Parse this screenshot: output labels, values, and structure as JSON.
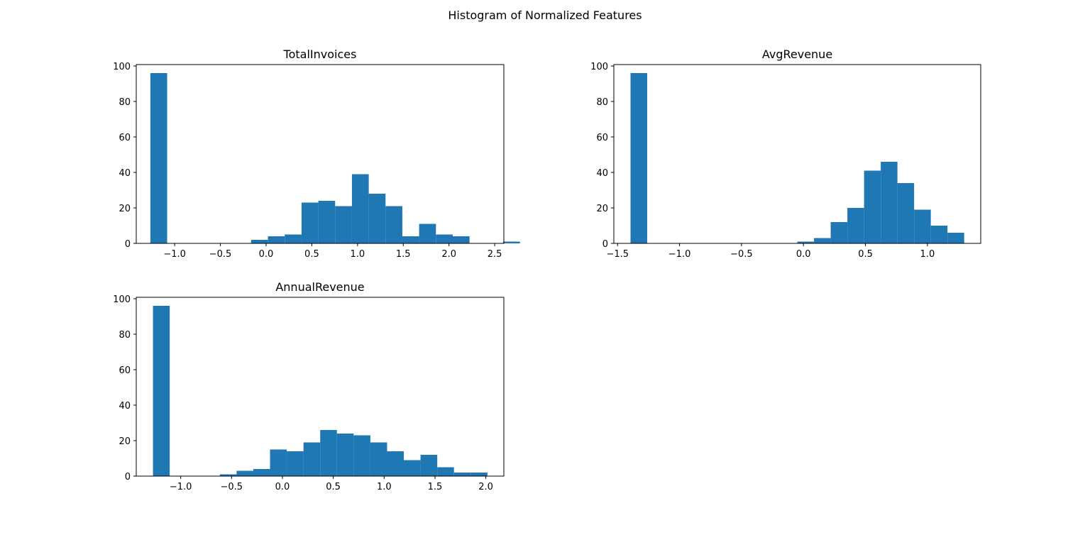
{
  "figure": {
    "title": "Histogram of Normalized Features"
  },
  "chart_data": [
    {
      "type": "bar",
      "title": "TotalInvoices",
      "xlabel": "",
      "ylabel": "",
      "grid": false,
      "xlim": [
        -1.42,
        2.6
      ],
      "ylim": [
        0,
        100.8
      ],
      "xticks": [
        -1.0,
        -0.5,
        0.0,
        0.5,
        1.0,
        1.5,
        2.0,
        2.5
      ],
      "xtick_labels": [
        "−1.0",
        "−0.5",
        "0.0",
        "0.5",
        "1.0",
        "1.5",
        "2.0",
        "2.5"
      ],
      "yticks": [
        0,
        20,
        40,
        60,
        80,
        100
      ],
      "ytick_labels": [
        "0",
        "20",
        "40",
        "60",
        "80",
        "100"
      ],
      "color": "#1f77b4",
      "bin_start": -1.2656,
      "bin_width": 0.1837,
      "values": [
        96,
        0,
        0,
        0,
        0,
        0,
        2,
        4,
        5,
        23,
        24,
        21,
        39,
        28,
        21,
        4,
        11,
        5,
        4,
        0,
        0,
        1
      ]
    },
    {
      "type": "bar",
      "title": "AvgRevenue",
      "xlabel": "",
      "ylabel": "",
      "grid": false,
      "xlim": [
        -1.53,
        1.43
      ],
      "ylim": [
        0,
        100.8
      ],
      "xticks": [
        -1.5,
        -1.0,
        -0.5,
        0.0,
        0.5,
        1.0
      ],
      "xtick_labels": [
        "−1.5",
        "−1.0",
        "−0.5",
        "0.0",
        "0.5",
        "1.0"
      ],
      "yticks": [
        0,
        20,
        40,
        60,
        80,
        100
      ],
      "ytick_labels": [
        "0",
        "20",
        "40",
        "60",
        "80",
        "100"
      ],
      "color": "#1f77b4",
      "bin_start": -1.3955,
      "bin_width": 0.1346,
      "values": [
        96,
        0,
        0,
        0,
        0,
        0,
        0,
        0,
        0,
        0,
        1,
        3,
        12,
        20,
        41,
        46,
        34,
        19,
        10,
        6
      ]
    },
    {
      "type": "bar",
      "title": "AnnualRevenue",
      "xlabel": "",
      "ylabel": "",
      "grid": false,
      "xlim": [
        -1.437,
        2.177
      ],
      "ylim": [
        0,
        100.8
      ],
      "xticks": [
        -1.0,
        -0.5,
        0.0,
        0.5,
        1.0,
        1.5,
        2.0
      ],
      "xtick_labels": [
        "−1.0",
        "−0.5",
        "0.0",
        "0.5",
        "1.0",
        "1.5",
        "2.0"
      ],
      "yticks": [
        0,
        20,
        40,
        60,
        80,
        100
      ],
      "ytick_labels": [
        "0",
        "20",
        "40",
        "60",
        "80",
        "100"
      ],
      "color": "#1f77b4",
      "bin_start": -1.2725,
      "bin_width": 0.1644,
      "values": [
        96,
        0,
        0,
        0,
        1,
        3,
        4,
        15,
        14,
        19,
        26,
        24,
        23,
        19,
        14,
        9,
        12,
        5,
        2,
        2
      ]
    }
  ]
}
